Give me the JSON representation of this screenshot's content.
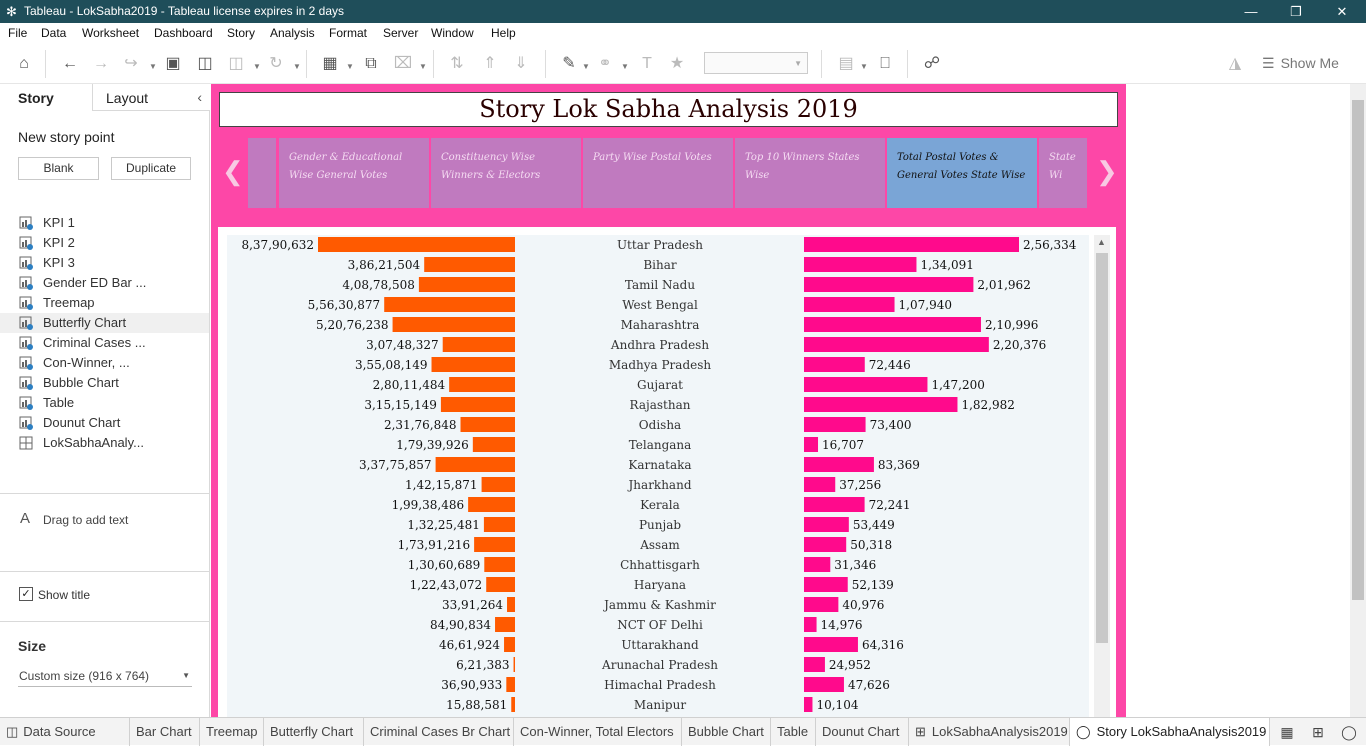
{
  "window": {
    "title": "Tableau - LokSabha2019 - Tableau license expires in 2 days",
    "minimize_icon": "minimize-icon",
    "maximize_icon": "maximize-icon",
    "close_icon": "close-icon"
  },
  "menu": [
    "File",
    "Data",
    "Worksheet",
    "Dashboard",
    "Story",
    "Analysis",
    "Format",
    "Server",
    "Window",
    "Help"
  ],
  "toolbar": {
    "show_me": "Show Me"
  },
  "sidebar": {
    "tabs": {
      "story": "Story",
      "layout": "Layout"
    },
    "new_story_point": "New story point",
    "blank_button": "Blank",
    "duplicate_button": "Duplicate",
    "sheets": [
      "KPI 1",
      "KPI 2",
      "KPI 3",
      "Gender ED Bar ...",
      "Treemap",
      "Butterfly Chart",
      "Criminal Cases ...",
      "Con-Winner, ...",
      "Bubble Chart",
      "Table",
      "Dounut Chart",
      "LokSabhaAnaly..."
    ],
    "selected_sheet": "Butterfly Chart",
    "drag_text": "Drag to add text",
    "show_title_label": "Show title",
    "show_title_checked": true,
    "size_heading": "Size",
    "size_value": "Custom size (916 x 764)"
  },
  "story": {
    "title": "Story Lok Sabha Analysis 2019",
    "story_points": [
      "",
      "Gender & Educational Wise General Votes",
      "Constituency Wise Winners & Electors",
      "Party Wise Postal Votes",
      "Top 10 Winners States Wise",
      "Total Postal Votes & General Votes State Wise",
      "State Wi"
    ],
    "active_story_point": "Total Postal Votes & General Votes State Wise",
    "colors": {
      "background": "#fd47a7",
      "active_point": "#7aa5d6",
      "inactive_point": "#c07abf"
    }
  },
  "chart_data": {
    "type": "bar",
    "categories": [
      "Uttar Pradesh",
      "Bihar",
      "Tamil Nadu",
      "West Bengal",
      "Maharashtra",
      "Andhra Pradesh",
      "Madhya Pradesh",
      "Gujarat",
      "Rajasthan",
      "Odisha",
      "Telangana",
      "Karnataka",
      "Jharkhand",
      "Kerala",
      "Punjab",
      "Assam",
      "Chhattisgarh",
      "Haryana",
      "Jammu & Kashmir",
      "NCT OF Delhi",
      "Uttarakhand",
      "Arunachal Pradesh",
      "Himachal Pradesh",
      "Manipur"
    ],
    "series": [
      {
        "color": "#ff5a00",
        "values": [
          83790632,
          38621504,
          40878508,
          55630877,
          52076238,
          30748327,
          35508149,
          28011484,
          31515149,
          23176848,
          17939926,
          33775857,
          14215871,
          19938486,
          13225481,
          17391216,
          13060689,
          12243072,
          3391264,
          8490834,
          4661924,
          621383,
          3690933,
          1588581
        ],
        "labels": [
          "8,37,90,632",
          "3,86,21,504",
          "4,08,78,508",
          "5,56,30,877",
          "5,20,76,238",
          "3,07,48,327",
          "3,55,08,149",
          "2,80,11,484",
          "3,15,15,149",
          "2,31,76,848",
          "1,79,39,926",
          "3,37,75,857",
          "1,42,15,871",
          "1,99,38,486",
          "1,32,25,481",
          "1,73,91,216",
          "1,30,60,689",
          "1,22,43,072",
          "33,91,264",
          "84,90,834",
          "46,61,924",
          "6,21,383",
          "36,90,933",
          "15,88,581"
        ]
      },
      {
        "color": "#ff0a8c",
        "values": [
          256334,
          134091,
          201962,
          107940,
          210996,
          220376,
          72446,
          147200,
          182982,
          73400,
          16707,
          83369,
          37256,
          72241,
          53449,
          50318,
          31346,
          52139,
          40976,
          14976,
          64316,
          24952,
          47626,
          10104
        ],
        "labels": [
          "2,56,334",
          "1,34,091",
          "2,01,962",
          "1,07,940",
          "2,10,996",
          "2,20,376",
          "72,446",
          "1,47,200",
          "1,82,982",
          "73,400",
          "16,707",
          "83,369",
          "37,256",
          "72,241",
          "53,449",
          "50,318",
          "31,346",
          "52,139",
          "40,976",
          "14,976",
          "64,316",
          "24,952",
          "47,626",
          "10,104"
        ]
      }
    ],
    "xlabel": "",
    "ylabel": ""
  },
  "bottom_tabs": [
    "Data Source",
    "Bar Chart",
    "Treemap",
    "Butterfly Chart",
    "Criminal Cases Br Chart",
    "Con-Winner, Total Electors",
    "Bubble Chart",
    "Table",
    "Dounut Chart",
    "LokSabhaAnalysis2019",
    "Story LokSabhaAnalysis2019"
  ],
  "active_bottom_tab": "Story LokSabhaAnalysis2019"
}
